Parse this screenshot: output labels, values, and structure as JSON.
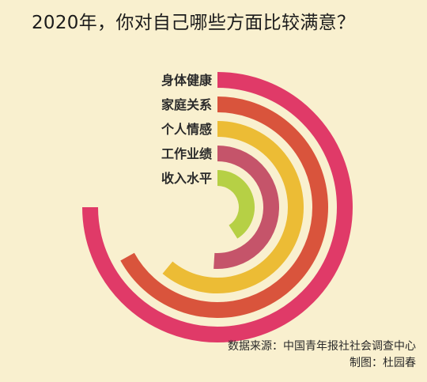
{
  "title": "2020年，你对自己哪些方面比较满意？",
  "chart_data": {
    "type": "radial-bar",
    "unit": "%",
    "series": [
      {
        "label": "身体健康",
        "value": 75,
        "color": "#e03a68"
      },
      {
        "label": "家庭关系",
        "value": 67,
        "color": "#d9543c"
      },
      {
        "label": "个人情感",
        "value": 61,
        "color": "#ecbc35"
      },
      {
        "label": "工作业绩",
        "value": 51,
        "color": "#c5546a"
      },
      {
        "label": "收入水平",
        "value": 41,
        "color": "#b6d045"
      }
    ],
    "axis_max": 100,
    "start": "top",
    "direction": "clockwise"
  },
  "footer": {
    "source": "数据来源：中国青年报社社会调查中心",
    "credit": "制图：杜园春"
  }
}
